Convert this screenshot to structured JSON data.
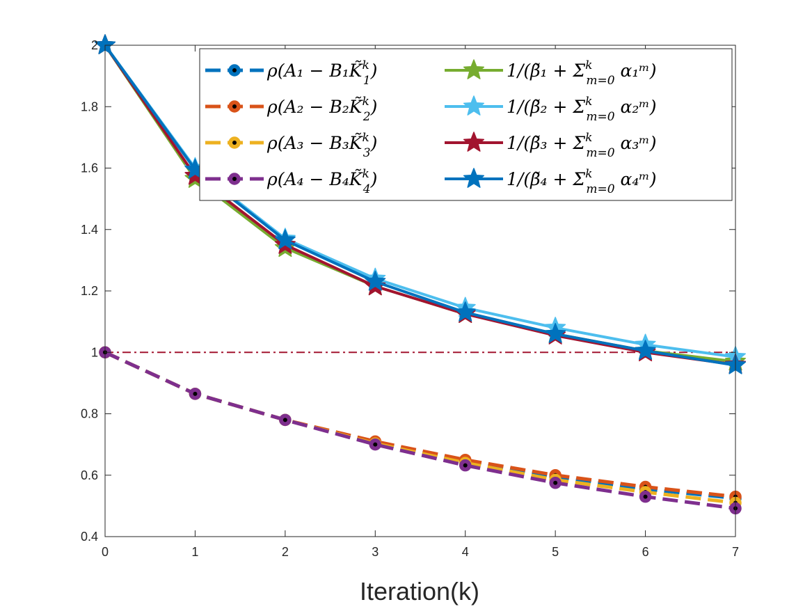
{
  "chart_data": {
    "type": "line",
    "title": "",
    "xlabel": "Iteration(k)",
    "ylabel": "",
    "x": [
      0,
      1,
      2,
      3,
      4,
      5,
      6,
      7
    ],
    "xlim": [
      0,
      7
    ],
    "ylim": [
      0.4,
      2.0
    ],
    "xticks": [
      "0",
      "1",
      "2",
      "3",
      "4",
      "5",
      "6",
      "7"
    ],
    "yticks": [
      "0.4",
      "0.6",
      "0.8",
      "1",
      "1.2",
      "1.4",
      "1.6",
      "1.8",
      "2"
    ],
    "ytick_values": [
      0.4,
      0.6,
      0.8,
      1.0,
      1.2,
      1.4,
      1.6,
      1.8,
      2.0
    ],
    "grid": false,
    "legend_position": "top-right",
    "reference_line": {
      "y": 1.0,
      "style": "dash-dot",
      "color": "#A2142F"
    },
    "series": [
      {
        "name": "ρ(A1 − B1K̃1^k)",
        "legend_main": "ρ(A₁ − B₁K̃",
        "legend_sub": "1",
        "legend_sup": "k",
        "legend_tail": ")",
        "style": "dashed",
        "marker": "circle",
        "color": "#0072BD",
        "values": [
          1.0,
          0.865,
          0.78,
          0.705,
          0.645,
          0.595,
          0.555,
          0.525
        ]
      },
      {
        "name": "ρ(A2 − B2K̃2^k)",
        "legend_main": "ρ(A₂ − B₂K̃",
        "legend_sub": "2",
        "legend_sup": "k",
        "legend_tail": ")",
        "style": "dashed",
        "marker": "circle",
        "color": "#D95319",
        "values": [
          1.0,
          0.865,
          0.78,
          0.71,
          0.65,
          0.6,
          0.562,
          0.53
        ]
      },
      {
        "name": "ρ(A3 − B3K̃3^k)",
        "legend_main": "ρ(A₃ − B₃K̃",
        "legend_sub": "3",
        "legend_sup": "k",
        "legend_tail": ")",
        "style": "dashed",
        "marker": "circle",
        "color": "#EDB120",
        "values": [
          1.0,
          0.865,
          0.78,
          0.703,
          0.64,
          0.585,
          0.545,
          0.51
        ]
      },
      {
        "name": "ρ(A4 − B4K̃4^k)",
        "legend_main": "ρ(A₄ − B₄K̃",
        "legend_sub": "4",
        "legend_sup": "k",
        "legend_tail": ")",
        "style": "dashed",
        "marker": "circle",
        "color": "#7E2F8E",
        "values": [
          1.0,
          0.865,
          0.78,
          0.7,
          0.632,
          0.575,
          0.53,
          0.492
        ]
      },
      {
        "name": "1/(β̃1 + Σ_{m=0}^{k} α1^m)",
        "legend_main": "1/(β̃₁ + Σ",
        "legend_sub": "m=0",
        "legend_sup": "k",
        "legend_tail": " α₁ᵐ)",
        "style": "solid",
        "marker": "star",
        "color": "#77AC30",
        "values": [
          2.0,
          1.565,
          1.34,
          1.215,
          1.125,
          1.06,
          1.005,
          0.97
        ]
      },
      {
        "name": "1/(β̃2 + Σ_{m=0}^{k} α2^m)",
        "legend_main": "1/(β̃₂ + Σ",
        "legend_sub": "m=0",
        "legend_sup": "k",
        "legend_tail": " α₂ᵐ)",
        "style": "solid",
        "marker": "star",
        "color": "#4DBEEE",
        "values": [
          2.0,
          1.6,
          1.37,
          1.24,
          1.145,
          1.08,
          1.025,
          0.985
        ]
      },
      {
        "name": "1/(β̃3 + Σ_{m=0}^{k} α3^m)",
        "legend_main": "1/(β̃₃ + Σ",
        "legend_sub": "m=0",
        "legend_sup": "k",
        "legend_tail": " α₃ᵐ)",
        "style": "solid",
        "marker": "star",
        "color": "#A2142F",
        "values": [
          2.0,
          1.575,
          1.35,
          1.215,
          1.125,
          1.055,
          1.0,
          0.96
        ]
      },
      {
        "name": "1/(β̃4 + Σ_{m=0}^{k} α4^m)",
        "legend_main": "1/(β̃₄ + Σ",
        "legend_sub": "m=0",
        "legend_sup": "k",
        "legend_tail": " α₄ᵐ)",
        "style": "solid",
        "marker": "star",
        "color": "#0072BD",
        "values": [
          2.0,
          1.595,
          1.365,
          1.23,
          1.13,
          1.06,
          1.005,
          0.958
        ]
      }
    ]
  }
}
